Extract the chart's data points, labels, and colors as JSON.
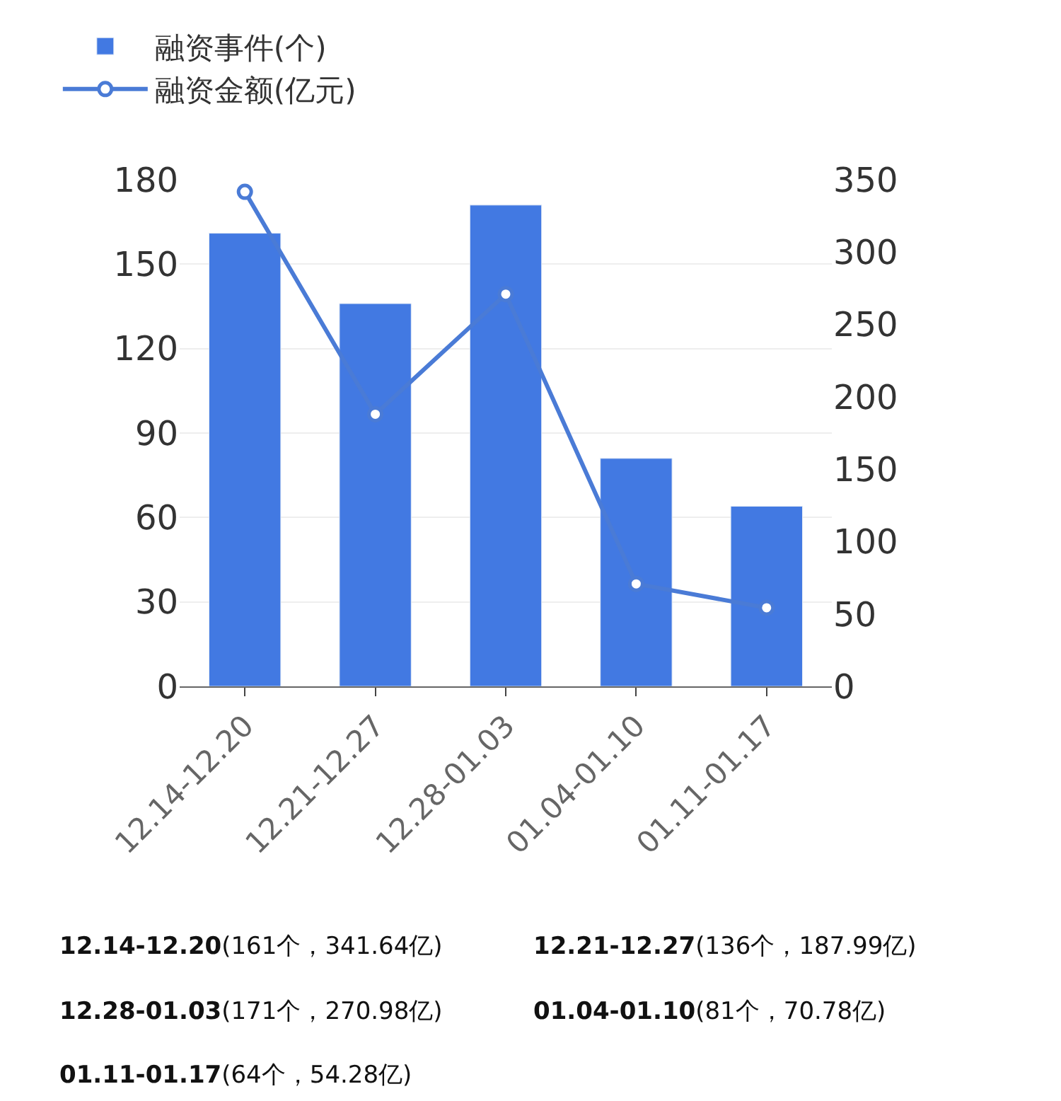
{
  "chart_data": {
    "type": "bar",
    "categories": [
      "12.14-12.20",
      "12.21-12.27",
      "12.28-01.03",
      "01.04-01.10",
      "01.11-01.17"
    ],
    "series": [
      {
        "name": "融资事件(个)",
        "color": "#4279e2",
        "values": [
          161,
          136,
          171,
          81,
          64
        ]
      },
      {
        "name": "融资金额(亿元)",
        "type": "line",
        "axis": "y2",
        "color": "#4a7bd6",
        "values": [
          341.64,
          187.99,
          270.98,
          70.78,
          54.28
        ]
      }
    ],
    "ylim": [
      0,
      180
    ],
    "yticks": [
      0,
      30,
      60,
      90,
      120,
      150,
      180
    ],
    "y2lim": [
      0,
      350
    ],
    "y2ticks": [
      0,
      50,
      100,
      150,
      200,
      250,
      300,
      350
    ],
    "grid": "y",
    "legend": "top",
    "marker": "circle",
    "annotations": [
      "12.14-12.20(161个，341.64亿)",
      "12.21-12.27(136个，187.99亿)",
      "12.28-01.03(171个，270.98亿)",
      "01.04-01.10(81个，70.78亿)",
      "01.11-01.17(64个，54.28亿)"
    ]
  }
}
